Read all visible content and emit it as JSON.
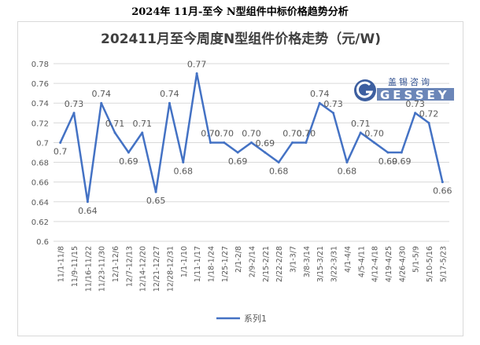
{
  "page": {
    "heading": "2024年 11月-至今 N型组件中标价格趋势分析"
  },
  "logo": {
    "cn_text": "盖锡咨询",
    "en_text": "GESSEY"
  },
  "colors": {
    "line": "#4472c4",
    "grid": "#d9d9d9",
    "text": "#595959",
    "title": "#404040"
  },
  "chart_data": {
    "type": "line",
    "title": "202411月至今周度N型组件价格走势（元/W)",
    "xlabel": "",
    "ylabel": "",
    "ylim": [
      0.6,
      0.78
    ],
    "yticks": [
      "0.78",
      "0.76",
      "0.74",
      "0.72",
      "0.7",
      "0.68",
      "0.66",
      "0.64",
      "0.62",
      "0.6"
    ],
    "grid": true,
    "legend_position": "bottom",
    "categories": [
      "11/1-11/8",
      "11/9-11/15",
      "11/16-11/22",
      "11/23-11/30",
      "12/1-12/6",
      "12/7-12/13",
      "12/14-12/20",
      "12/21-12/27",
      "12/28-12/31",
      "1/1-1/10",
      "1/11-1/17",
      "1/18-1/24",
      "1/25-1/27",
      "2/1-2/8",
      "2/9-2/14",
      "2/15-2/21",
      "2/22-2/28",
      "3/1-3/7",
      "3/8-3/14",
      "3/15-3/21",
      "3/22-3/31",
      "4/1-4/4",
      "4/5-4/11",
      "4/12-4/18",
      "4/19-4/25",
      "4/26-4/30",
      "5/1-5/9",
      "5/10-5/16",
      "5/17-5/23"
    ],
    "series": [
      {
        "name": "系列1",
        "values": [
          0.7,
          0.73,
          0.64,
          0.74,
          0.71,
          0.69,
          0.71,
          0.65,
          0.74,
          0.68,
          0.77,
          0.7,
          0.7,
          0.69,
          0.7,
          0.69,
          0.68,
          0.7,
          0.7,
          0.74,
          0.73,
          0.68,
          0.71,
          0.7,
          0.69,
          0.69,
          0.73,
          0.72,
          0.66
        ],
        "labels": [
          "0.7",
          "0.73",
          "0.64",
          "0.74",
          "0.71",
          "0.69",
          "0.71",
          "0.65",
          "0.74",
          "0.68",
          "0.77",
          "0.70",
          "0.70",
          "0.69",
          "0.70",
          "0.69",
          "0.68",
          "0.70",
          "0.70",
          "0.74",
          "0.73",
          "0.68",
          "0.71",
          "0.70",
          "0.69",
          "0.69",
          "0.73",
          "0.72",
          "0.66"
        ]
      }
    ]
  }
}
